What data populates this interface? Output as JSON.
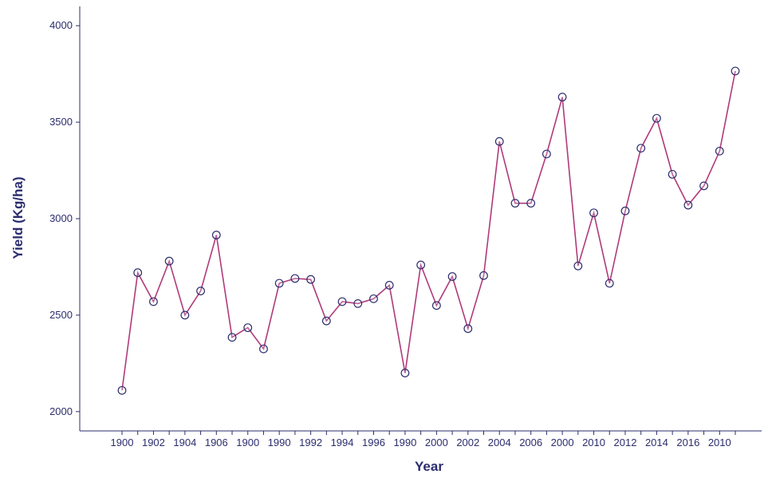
{
  "chart_data": {
    "type": "line",
    "xlabel": "Year",
    "ylabel": "Yield (Kg/ha)",
    "title": "",
    "ylim": [
      1900,
      4100
    ],
    "yticks": [
      2000,
      2500,
      3000,
      3500,
      4000
    ],
    "xtick_labels": [
      "1900",
      "1902",
      "1904",
      "1906",
      "1900",
      "1990",
      "1992",
      "1994",
      "1996",
      "1990",
      "2000",
      "2002",
      "2004",
      "2006",
      "2000",
      "2010",
      "2012",
      "2014",
      "2016",
      "2010"
    ],
    "grid": false,
    "legend": "none",
    "colors": {
      "line": "#b03a7a",
      "marker": "#2b2d6e",
      "axis": "#2b2d6e",
      "text": "#2b2d6e"
    },
    "series": [
      {
        "values": [
          2110,
          2720,
          2570,
          2780,
          2500,
          2625,
          2915,
          2385,
          2435,
          2325,
          2665,
          2690,
          2685,
          2470,
          2570,
          2560,
          2585,
          2655,
          2200,
          2760,
          2550,
          2700,
          2430,
          2705,
          3400,
          3080,
          3080,
          3335,
          3630,
          2755,
          3030,
          2665,
          3040,
          3365,
          3520,
          3230,
          3070,
          3170,
          3350,
          3765
        ]
      }
    ]
  }
}
